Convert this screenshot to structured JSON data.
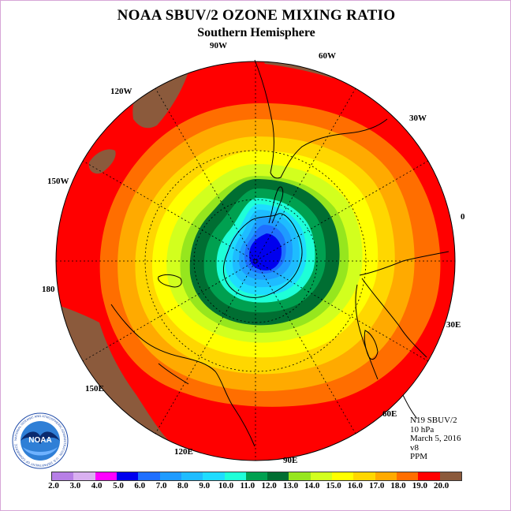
{
  "title": "NOAA SBUV/2 OZONE MIXING RATIO",
  "subtitle": "Southern Hemisphere",
  "longitude_labels": {
    "lon_90w": "90W",
    "lon_60w": "60W",
    "lon_30w": "30W",
    "lon_0": "0",
    "lon_30e": "30E",
    "lon_60e": "60E",
    "lon_90e": "90E",
    "lon_120e": "120E",
    "lon_150e": "150E",
    "lon_180": "180",
    "lon_150w": "150W",
    "lon_120w": "120W"
  },
  "info": {
    "instrument": "N19 SBUV/2",
    "level": "10 hPa",
    "date": "March 5, 2016",
    "version": "v8",
    "units": "PPM"
  },
  "logo": {
    "text": "NOAA",
    "ring_text": "NATIONAL OCEANIC AND ATMOSPHERIC ADMINISTRATION · U.S. DEPARTMENT OF COMMERCE"
  },
  "colorbar": {
    "tick_labels": [
      "2.0",
      "3.0",
      "4.0",
      "5.0",
      "6.0",
      "7.0",
      "8.0",
      "9.0",
      "10.0",
      "11.0",
      "12.0",
      "13.0",
      "14.0",
      "15.0",
      "16.0",
      "17.0",
      "18.0",
      "19.0",
      "20.0"
    ],
    "colors": [
      "#b77fe6",
      "#d9b0f0",
      "#ff00ff",
      "#0000ee",
      "#1e6fff",
      "#1e9bff",
      "#1ebcff",
      "#1edcff",
      "#1effd8",
      "#00a050",
      "#006e32",
      "#96e61e",
      "#d2ff1e",
      "#ffff00",
      "#ffd700",
      "#ffaa00",
      "#ff6e00",
      "#ff0000",
      "#8b5a3c"
    ]
  },
  "map": {
    "projection": "south polar stereographic",
    "ocean_fill_outer": "#ff0000",
    "land_high_values": "#8b5a3c",
    "contour_levels": [
      20.0,
      19.0,
      18.0,
      17.0,
      16.0,
      15.0,
      14.0,
      13.0,
      12.0,
      11.0,
      10.0,
      9.0,
      8.0,
      7.0,
      6.0,
      5.0
    ]
  }
}
